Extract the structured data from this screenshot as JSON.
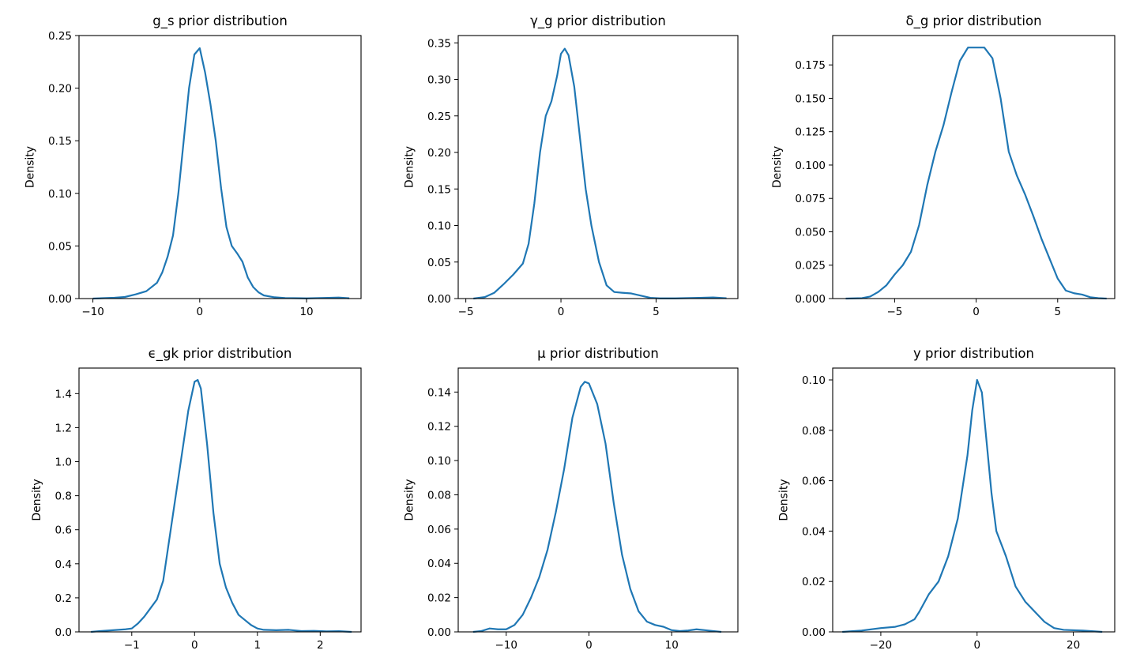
{
  "chart_data": [
    {
      "type": "line",
      "title": "g_s prior distribution",
      "xlabel": "",
      "ylabel": "Density",
      "xlim": [
        -11.3,
        15.1
      ],
      "ylim": [
        0,
        0.25
      ],
      "xticks": [
        {
          "v": -10,
          "label": "−10"
        },
        {
          "v": 0,
          "label": "0"
        },
        {
          "v": 10,
          "label": "10"
        }
      ],
      "yticks": [
        {
          "v": 0,
          "label": "0.00"
        },
        {
          "v": 0.05,
          "label": "0.05"
        },
        {
          "v": 0.1,
          "label": "0.10"
        },
        {
          "v": 0.15,
          "label": "0.15"
        },
        {
          "v": 0.2,
          "label": "0.20"
        },
        {
          "v": 0.25,
          "label": "0.25"
        }
      ],
      "series": [
        {
          "color": "#1f77b4",
          "x": [
            -10.0,
            -8.0,
            -7.0,
            -6.0,
            -5.0,
            -4.0,
            -3.5,
            -3.0,
            -2.5,
            -2.0,
            -1.5,
            -1.0,
            -0.5,
            0.0,
            0.5,
            1.0,
            1.5,
            2.0,
            2.5,
            3.0,
            3.5,
            4.0,
            4.5,
            5.0,
            5.5,
            6.0,
            7.0,
            8.0,
            10.0,
            12.0,
            13.0,
            14.0
          ],
          "y": [
            0.0,
            0.0008,
            0.0015,
            0.004,
            0.007,
            0.015,
            0.025,
            0.04,
            0.06,
            0.1,
            0.15,
            0.2,
            0.232,
            0.238,
            0.215,
            0.185,
            0.15,
            0.105,
            0.068,
            0.05,
            0.043,
            0.035,
            0.02,
            0.011,
            0.006,
            0.003,
            0.0012,
            0.0005,
            0.0002,
            0.0007,
            0.001,
            0.0003
          ]
        }
      ]
    },
    {
      "type": "line",
      "title": "γ_g prior distribution",
      "xlabel": "",
      "ylabel": "Density",
      "xlim": [
        -5.4,
        9.3
      ],
      "ylim": [
        0,
        0.36
      ],
      "xticks": [
        {
          "v": -5,
          "label": "−5"
        },
        {
          "v": 0,
          "label": "0"
        },
        {
          "v": 5,
          "label": "5"
        }
      ],
      "yticks": [
        {
          "v": 0,
          "label": "0.00"
        },
        {
          "v": 0.05,
          "label": "0.05"
        },
        {
          "v": 0.1,
          "label": "0.10"
        },
        {
          "v": 0.15,
          "label": "0.15"
        },
        {
          "v": 0.2,
          "label": "0.20"
        },
        {
          "v": 0.25,
          "label": "0.25"
        },
        {
          "v": 0.3,
          "label": "0.30"
        },
        {
          "v": 0.35,
          "label": "0.35"
        }
      ],
      "series": [
        {
          "color": "#1f77b4",
          "x": [
            -4.6,
            -4.0,
            -3.5,
            -3.0,
            -2.5,
            -2.0,
            -1.7,
            -1.4,
            -1.1,
            -0.8,
            -0.5,
            -0.2,
            0.0,
            0.2,
            0.4,
            0.7,
            1.0,
            1.3,
            1.6,
            2.0,
            2.4,
            2.8,
            3.2,
            3.7,
            4.2,
            4.7,
            5.2,
            6.0,
            7.0,
            8.0,
            8.7
          ],
          "y": [
            0.0,
            0.002,
            0.008,
            0.02,
            0.033,
            0.048,
            0.075,
            0.13,
            0.2,
            0.25,
            0.27,
            0.305,
            0.335,
            0.342,
            0.333,
            0.29,
            0.22,
            0.15,
            0.1,
            0.05,
            0.018,
            0.009,
            0.008,
            0.007,
            0.004,
            0.001,
            0.0003,
            0.0003,
            0.0008,
            0.0015,
            0.0005
          ]
        }
      ]
    },
    {
      "type": "line",
      "title": "δ_g prior distribution",
      "xlabel": "",
      "ylabel": "Density",
      "xlim": [
        -8.8,
        8.5
      ],
      "ylim": [
        0,
        0.197
      ],
      "xticks": [
        {
          "v": -5,
          "label": "−5"
        },
        {
          "v": 0,
          "label": "0"
        },
        {
          "v": 5,
          "label": "5"
        }
      ],
      "yticks": [
        {
          "v": 0,
          "label": "0.000"
        },
        {
          "v": 0.025,
          "label": "0.025"
        },
        {
          "v": 0.05,
          "label": "0.050"
        },
        {
          "v": 0.075,
          "label": "0.075"
        },
        {
          "v": 0.1,
          "label": "0.100"
        },
        {
          "v": 0.125,
          "label": "0.125"
        },
        {
          "v": 0.15,
          "label": "0.150"
        },
        {
          "v": 0.175,
          "label": "0.175"
        }
      ],
      "series": [
        {
          "color": "#1f77b4",
          "x": [
            -8.0,
            -7.0,
            -6.5,
            -6.0,
            -5.5,
            -5.0,
            -4.5,
            -4.0,
            -3.5,
            -3.0,
            -2.5,
            -2.0,
            -1.5,
            -1.0,
            -0.5,
            0.0,
            0.5,
            1.0,
            1.5,
            2.0,
            2.5,
            3.0,
            3.5,
            4.0,
            4.5,
            5.0,
            5.5,
            6.0,
            6.5,
            7.0,
            7.5,
            8.0
          ],
          "y": [
            0.0,
            0.0003,
            0.0015,
            0.005,
            0.01,
            0.018,
            0.025,
            0.035,
            0.055,
            0.085,
            0.11,
            0.13,
            0.155,
            0.178,
            0.188,
            0.188,
            0.188,
            0.18,
            0.15,
            0.11,
            0.092,
            0.078,
            0.062,
            0.045,
            0.03,
            0.015,
            0.006,
            0.004,
            0.003,
            0.001,
            0.0003,
            0.0
          ]
        }
      ]
    },
    {
      "type": "line",
      "title": "ϵ_gk prior distribution",
      "xlabel": "",
      "ylabel": "Density",
      "xlim": [
        -1.84,
        2.65
      ],
      "ylim": [
        0,
        1.55
      ],
      "xticks": [
        {
          "v": -1,
          "label": "−1"
        },
        {
          "v": 0,
          "label": "0"
        },
        {
          "v": 1,
          "label": "1"
        },
        {
          "v": 2,
          "label": "2"
        }
      ],
      "yticks": [
        {
          "v": 0,
          "label": "0.0"
        },
        {
          "v": 0.2,
          "label": "0.2"
        },
        {
          "v": 0.4,
          "label": "0.4"
        },
        {
          "v": 0.6,
          "label": "0.6"
        },
        {
          "v": 0.8,
          "label": "0.8"
        },
        {
          "v": 1.0,
          "label": "1.0"
        },
        {
          "v": 1.2,
          "label": "1.2"
        },
        {
          "v": 1.4,
          "label": "1.4"
        }
      ],
      "series": [
        {
          "color": "#1f77b4",
          "x": [
            -1.65,
            -1.5,
            -1.3,
            -1.1,
            -1.0,
            -0.9,
            -0.8,
            -0.7,
            -0.6,
            -0.5,
            -0.4,
            -0.3,
            -0.2,
            -0.1,
            0.0,
            0.05,
            0.1,
            0.2,
            0.3,
            0.4,
            0.5,
            0.6,
            0.7,
            0.8,
            0.9,
            1.0,
            1.1,
            1.3,
            1.5,
            1.7,
            1.9,
            2.1,
            2.3,
            2.5
          ],
          "y": [
            0.0,
            0.005,
            0.01,
            0.015,
            0.02,
            0.05,
            0.09,
            0.14,
            0.19,
            0.3,
            0.55,
            0.8,
            1.05,
            1.3,
            1.47,
            1.48,
            1.43,
            1.1,
            0.7,
            0.4,
            0.26,
            0.17,
            0.1,
            0.07,
            0.04,
            0.02,
            0.012,
            0.01,
            0.012,
            0.005,
            0.006,
            0.003,
            0.004,
            0.0
          ]
        }
      ]
    },
    {
      "type": "line",
      "title": "μ prior distribution",
      "xlabel": "",
      "ylabel": "Density",
      "xlim": [
        -15.8,
        18.0
      ],
      "ylim": [
        0,
        0.154
      ],
      "xticks": [
        {
          "v": -10,
          "label": "−10"
        },
        {
          "v": 0,
          "label": "0"
        },
        {
          "v": 10,
          "label": "10"
        }
      ],
      "yticks": [
        {
          "v": 0,
          "label": "0.00"
        },
        {
          "v": 0.02,
          "label": "0.02"
        },
        {
          "v": 0.04,
          "label": "0.04"
        },
        {
          "v": 0.06,
          "label": "0.06"
        },
        {
          "v": 0.08,
          "label": "0.08"
        },
        {
          "v": 0.1,
          "label": "0.10"
        },
        {
          "v": 0.12,
          "label": "0.12"
        },
        {
          "v": 0.14,
          "label": "0.14"
        }
      ],
      "series": [
        {
          "color": "#1f77b4",
          "x": [
            -14.0,
            -13.0,
            -12.0,
            -11.0,
            -10.0,
            -9.0,
            -8.0,
            -7.0,
            -6.0,
            -5.0,
            -4.0,
            -3.0,
            -2.0,
            -1.0,
            -0.5,
            0.0,
            1.0,
            2.0,
            3.0,
            4.0,
            5.0,
            6.0,
            7.0,
            8.0,
            9.0,
            10.0,
            11.0,
            12.0,
            13.0,
            14.0,
            15.0,
            16.0
          ],
          "y": [
            0.0,
            0.0005,
            0.002,
            0.0015,
            0.0015,
            0.004,
            0.01,
            0.02,
            0.032,
            0.048,
            0.07,
            0.095,
            0.125,
            0.143,
            0.146,
            0.145,
            0.133,
            0.11,
            0.075,
            0.045,
            0.025,
            0.012,
            0.006,
            0.004,
            0.003,
            0.001,
            0.0005,
            0.0008,
            0.0015,
            0.001,
            0.0005,
            0.0
          ]
        }
      ]
    },
    {
      "type": "line",
      "title": "y prior distribution",
      "xlabel": "",
      "ylabel": "Density",
      "xlim": [
        -30.0,
        28.6
      ],
      "ylim": [
        0,
        0.1047
      ],
      "xticks": [
        {
          "v": -20,
          "label": "−20"
        },
        {
          "v": 0,
          "label": "0"
        },
        {
          "v": 20,
          "label": "20"
        }
      ],
      "yticks": [
        {
          "v": 0,
          "label": "0.00"
        },
        {
          "v": 0.02,
          "label": "0.02"
        },
        {
          "v": 0.04,
          "label": "0.04"
        },
        {
          "v": 0.06,
          "label": "0.06"
        },
        {
          "v": 0.08,
          "label": "0.08"
        },
        {
          "v": 0.1,
          "label": "0.10"
        }
      ],
      "series": [
        {
          "color": "#1f77b4",
          "x": [
            -28.0,
            -24.0,
            -20.0,
            -17.0,
            -15.0,
            -13.0,
            -12.0,
            -10.0,
            -8.0,
            -6.0,
            -4.0,
            -2.0,
            -1.0,
            0.0,
            1.0,
            2.0,
            3.0,
            4.0,
            5.0,
            6.0,
            8.0,
            10.0,
            12.0,
            14.0,
            16.0,
            18.0,
            22.0,
            26.0
          ],
          "y": [
            0.0,
            0.0005,
            0.0015,
            0.002,
            0.003,
            0.005,
            0.008,
            0.015,
            0.02,
            0.03,
            0.045,
            0.07,
            0.088,
            0.1,
            0.095,
            0.075,
            0.055,
            0.04,
            0.035,
            0.03,
            0.018,
            0.012,
            0.008,
            0.004,
            0.0015,
            0.0008,
            0.0005,
            0.0
          ]
        }
      ]
    }
  ]
}
